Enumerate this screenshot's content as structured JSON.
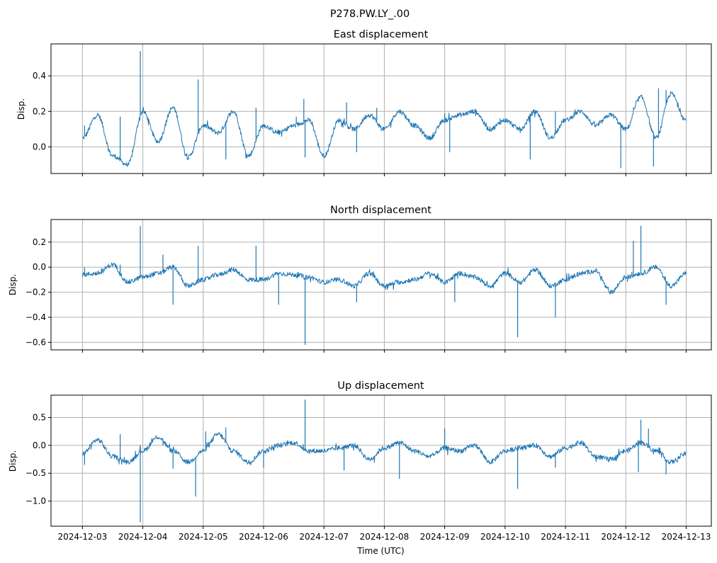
{
  "suptitle": "P278.PW.LY_.00",
  "xlabel": "Time (UTC)",
  "colors": {
    "line": "#1f77b4",
    "grid": "#b0b0b0",
    "axes": "#000000"
  },
  "x_ticks": [
    "2024-12-03",
    "2024-12-04",
    "2024-12-05",
    "2024-12-06",
    "2024-12-07",
    "2024-12-08",
    "2024-12-09",
    "2024-12-10",
    "2024-12-11",
    "2024-12-12",
    "2024-12-13"
  ],
  "chart_data": [
    {
      "type": "line",
      "title": "East displacement",
      "ylabel": "Disp.",
      "xlim": [
        "2024-12-02T11:30",
        "2024-12-13T10:00"
      ],
      "ylim": [
        -0.15,
        0.58
      ],
      "yticks": [
        0.0,
        0.2,
        0.4
      ],
      "ytick_labels": [
        "0.0",
        "0.2",
        "0.4"
      ],
      "grid": true,
      "series": [
        {
          "x": [
            "2024-12-03T00:00",
            "2024-12-03T06:00",
            "2024-12-03T12:00",
            "2024-12-03T18:00",
            "2024-12-04T00:00",
            "2024-12-04T06:00",
            "2024-12-04T12:00",
            "2024-12-04T18:00",
            "2024-12-05T00:00",
            "2024-12-05T06:00",
            "2024-12-05T12:00",
            "2024-12-05T18:00",
            "2024-12-06T00:00",
            "2024-12-06T06:00",
            "2024-12-06T12:00",
            "2024-12-06T18:00",
            "2024-12-07T00:00",
            "2024-12-07T06:00",
            "2024-12-07T12:00",
            "2024-12-07T18:00",
            "2024-12-08T00:00",
            "2024-12-08T06:00",
            "2024-12-08T12:00",
            "2024-12-08T18:00",
            "2024-12-09T00:00",
            "2024-12-09T06:00",
            "2024-12-09T12:00",
            "2024-12-09T18:00",
            "2024-12-10T00:00",
            "2024-12-10T06:00",
            "2024-12-10T12:00",
            "2024-12-10T18:00",
            "2024-12-11T00:00",
            "2024-12-11T06:00",
            "2024-12-11T12:00",
            "2024-12-11T18:00",
            "2024-12-12T00:00",
            "2024-12-12T06:00",
            "2024-12-12T12:00",
            "2024-12-12T18:00",
            "2024-12-13T00:00"
          ],
          "y": [
            0.05,
            0.18,
            -0.05,
            -0.1,
            0.2,
            0.03,
            0.22,
            -0.06,
            0.12,
            0.08,
            0.2,
            -0.05,
            0.12,
            0.08,
            0.12,
            0.15,
            -0.05,
            0.15,
            0.1,
            0.18,
            0.1,
            0.2,
            0.12,
            0.05,
            0.15,
            0.18,
            0.2,
            0.1,
            0.15,
            0.1,
            0.2,
            0.05,
            0.15,
            0.2,
            0.12,
            0.18,
            0.1,
            0.28,
            0.05,
            0.3,
            0.15
          ],
          "spikes": [
            {
              "x": "2024-12-03T00:50",
              "y": 0.12
            },
            {
              "x": "2024-12-03T15:00",
              "y": 0.17
            },
            {
              "x": "2024-12-03T23:00",
              "y": 0.54
            },
            {
              "x": "2024-12-04T22:00",
              "y": 0.38
            },
            {
              "x": "2024-12-05T09:00",
              "y": -0.07
            },
            {
              "x": "2024-12-05T21:00",
              "y": 0.22
            },
            {
              "x": "2024-12-06T13:00",
              "y": 0.17
            },
            {
              "x": "2024-12-06T16:00",
              "y": 0.27
            },
            {
              "x": "2024-12-06T16:30",
              "y": -0.06
            },
            {
              "x": "2024-12-07T09:00",
              "y": 0.25
            },
            {
              "x": "2024-12-07T13:00",
              "y": -0.03
            },
            {
              "x": "2024-12-07T21:00",
              "y": 0.22
            },
            {
              "x": "2024-12-08T06:00",
              "y": 0.2
            },
            {
              "x": "2024-12-09T00:00",
              "y": 0.19
            },
            {
              "x": "2024-12-09T02:00",
              "y": -0.03
            },
            {
              "x": "2024-12-09T22:00",
              "y": 0.16
            },
            {
              "x": "2024-12-10T10:00",
              "y": -0.07
            },
            {
              "x": "2024-12-10T20:00",
              "y": 0.2
            },
            {
              "x": "2024-12-11T18:00",
              "y": 0.18
            },
            {
              "x": "2024-12-11T22:00",
              "y": -0.12
            },
            {
              "x": "2024-12-12T11:00",
              "y": -0.11
            },
            {
              "x": "2024-12-12T13:00",
              "y": 0.33
            },
            {
              "x": "2024-12-12T16:00",
              "y": 0.32
            }
          ]
        }
      ]
    },
    {
      "type": "line",
      "title": "North displacement",
      "ylabel": "Disp.",
      "xlim": [
        "2024-12-02T11:30",
        "2024-12-13T10:00"
      ],
      "ylim": [
        -0.66,
        0.38
      ],
      "yticks": [
        -0.6,
        -0.4,
        -0.2,
        0.0,
        0.2
      ],
      "ytick_labels": [
        "−0.6",
        "−0.4",
        "−0.2",
        "0.0",
        "0.2"
      ],
      "grid": true,
      "series": [
        {
          "x": [
            "2024-12-03T00:00",
            "2024-12-03T06:00",
            "2024-12-03T12:00",
            "2024-12-03T18:00",
            "2024-12-04T00:00",
            "2024-12-04T06:00",
            "2024-12-04T12:00",
            "2024-12-04T18:00",
            "2024-12-05T00:00",
            "2024-12-05T06:00",
            "2024-12-05T12:00",
            "2024-12-05T18:00",
            "2024-12-06T00:00",
            "2024-12-06T06:00",
            "2024-12-06T12:00",
            "2024-12-06T18:00",
            "2024-12-07T00:00",
            "2024-12-07T06:00",
            "2024-12-07T12:00",
            "2024-12-07T18:00",
            "2024-12-08T00:00",
            "2024-12-08T06:00",
            "2024-12-08T12:00",
            "2024-12-08T18:00",
            "2024-12-09T00:00",
            "2024-12-09T06:00",
            "2024-12-09T12:00",
            "2024-12-09T18:00",
            "2024-12-10T00:00",
            "2024-12-10T06:00",
            "2024-12-10T12:00",
            "2024-12-10T18:00",
            "2024-12-11T00:00",
            "2024-12-11T06:00",
            "2024-12-11T12:00",
            "2024-12-11T18:00",
            "2024-12-12T00:00",
            "2024-12-12T06:00",
            "2024-12-12T12:00",
            "2024-12-12T18:00",
            "2024-12-13T00:00"
          ],
          "y": [
            -0.06,
            -0.05,
            0.02,
            -0.12,
            -0.08,
            -0.05,
            0.0,
            -0.15,
            -0.1,
            -0.06,
            -0.02,
            -0.1,
            -0.1,
            -0.05,
            -0.06,
            -0.08,
            -0.12,
            -0.1,
            -0.15,
            -0.05,
            -0.15,
            -0.12,
            -0.1,
            -0.05,
            -0.12,
            -0.05,
            -0.08,
            -0.15,
            -0.05,
            -0.12,
            -0.02,
            -0.15,
            -0.1,
            -0.05,
            -0.03,
            -0.2,
            -0.08,
            -0.05,
            0.0,
            -0.15,
            -0.05
          ],
          "spikes": [
            {
              "x": "2024-12-03T00:50",
              "y": 0.0
            },
            {
              "x": "2024-12-03T15:00",
              "y": 0.02
            },
            {
              "x": "2024-12-03T23:00",
              "y": 0.33
            },
            {
              "x": "2024-12-04T08:00",
              "y": 0.1
            },
            {
              "x": "2024-12-04T12:00",
              "y": -0.3
            },
            {
              "x": "2024-12-04T22:00",
              "y": 0.17
            },
            {
              "x": "2024-12-05T21:00",
              "y": 0.17
            },
            {
              "x": "2024-12-06T06:00",
              "y": -0.3
            },
            {
              "x": "2024-12-06T16:30",
              "y": -0.62
            },
            {
              "x": "2024-12-07T13:00",
              "y": -0.28
            },
            {
              "x": "2024-12-09T04:00",
              "y": -0.28
            },
            {
              "x": "2024-12-10T05:00",
              "y": -0.56
            },
            {
              "x": "2024-12-10T20:00",
              "y": -0.4
            },
            {
              "x": "2024-12-12T03:00",
              "y": 0.21
            },
            {
              "x": "2024-12-12T06:00",
              "y": 0.33
            },
            {
              "x": "2024-12-12T16:00",
              "y": -0.3
            }
          ]
        }
      ]
    },
    {
      "type": "line",
      "title": "Up displacement",
      "ylabel": "Disp.",
      "xlabel": "Time (UTC)",
      "xlim": [
        "2024-12-02T11:30",
        "2024-12-13T10:00"
      ],
      "ylim": [
        -1.45,
        0.9
      ],
      "yticks": [
        -1.0,
        -0.5,
        0.0,
        0.5
      ],
      "ytick_labels": [
        "−1.0",
        "−0.5",
        "0.0",
        "0.5"
      ],
      "grid": true,
      "series": [
        {
          "x": [
            "2024-12-03T00:00",
            "2024-12-03T06:00",
            "2024-12-03T12:00",
            "2024-12-03T18:00",
            "2024-12-04T00:00",
            "2024-12-04T06:00",
            "2024-12-04T12:00",
            "2024-12-04T18:00",
            "2024-12-05T00:00",
            "2024-12-05T06:00",
            "2024-12-05T12:00",
            "2024-12-05T18:00",
            "2024-12-06T00:00",
            "2024-12-06T06:00",
            "2024-12-06T12:00",
            "2024-12-06T18:00",
            "2024-12-07T00:00",
            "2024-12-07T06:00",
            "2024-12-07T12:00",
            "2024-12-07T18:00",
            "2024-12-08T00:00",
            "2024-12-08T06:00",
            "2024-12-08T12:00",
            "2024-12-08T18:00",
            "2024-12-09T00:00",
            "2024-12-09T06:00",
            "2024-12-09T12:00",
            "2024-12-09T18:00",
            "2024-12-10T00:00",
            "2024-12-10T06:00",
            "2024-12-10T12:00",
            "2024-12-10T18:00",
            "2024-12-11T00:00",
            "2024-12-11T06:00",
            "2024-12-11T12:00",
            "2024-12-11T18:00",
            "2024-12-12T00:00",
            "2024-12-12T06:00",
            "2024-12-12T12:00",
            "2024-12-12T18:00",
            "2024-12-13T00:00"
          ],
          "y": [
            -0.15,
            0.1,
            -0.2,
            -0.3,
            -0.1,
            0.15,
            -0.1,
            -0.3,
            -0.1,
            0.2,
            -0.1,
            -0.3,
            -0.1,
            0.0,
            0.05,
            -0.1,
            -0.1,
            -0.05,
            0.0,
            -0.25,
            -0.05,
            0.05,
            -0.1,
            -0.2,
            -0.05,
            -0.1,
            0.0,
            -0.3,
            -0.1,
            -0.05,
            0.0,
            -0.2,
            -0.05,
            0.05,
            -0.2,
            -0.25,
            -0.1,
            0.05,
            -0.1,
            -0.3,
            -0.15
          ],
          "spikes": [
            {
              "x": "2024-12-03T00:50",
              "y": -0.35
            },
            {
              "x": "2024-12-03T15:00",
              "y": 0.2
            },
            {
              "x": "2024-12-03T23:00",
              "y": -1.38
            },
            {
              "x": "2024-12-04T08:00",
              "y": 0.0
            },
            {
              "x": "2024-12-04T12:00",
              "y": -0.42
            },
            {
              "x": "2024-12-04T21:00",
              "y": -0.92
            },
            {
              "x": "2024-12-05T01:00",
              "y": 0.25
            },
            {
              "x": "2024-12-05T09:00",
              "y": 0.32
            },
            {
              "x": "2024-12-06T00:00",
              "y": -0.4
            },
            {
              "x": "2024-12-06T16:30",
              "y": 0.82
            },
            {
              "x": "2024-12-07T08:00",
              "y": -0.45
            },
            {
              "x": "2024-12-08T06:00",
              "y": -0.6
            },
            {
              "x": "2024-12-09T00:00",
              "y": 0.3
            },
            {
              "x": "2024-12-10T05:00",
              "y": -0.78
            },
            {
              "x": "2024-12-10T20:00",
              "y": -0.4
            },
            {
              "x": "2024-12-12T05:00",
              "y": -0.48
            },
            {
              "x": "2024-12-12T06:00",
              "y": 0.46
            },
            {
              "x": "2024-12-12T09:00",
              "y": 0.3
            },
            {
              "x": "2024-12-12T16:00",
              "y": -0.52
            }
          ]
        }
      ]
    }
  ]
}
